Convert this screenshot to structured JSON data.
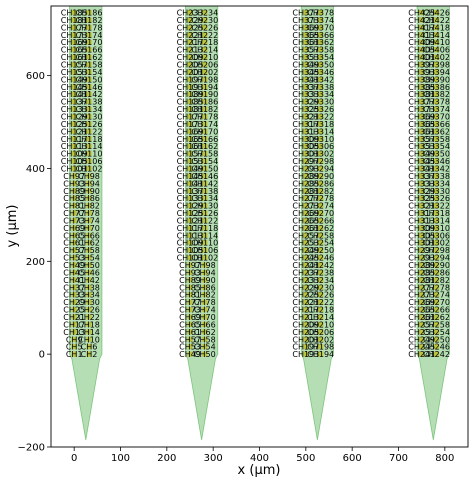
{
  "chart_data": {
    "type": "scatter",
    "title": "",
    "xlabel": "x (μm)",
    "ylabel": "y (μm)",
    "xlim": [
      -50,
      850
    ],
    "ylim": [
      -200,
      750
    ],
    "x_ticks": [
      0,
      100,
      200,
      300,
      400,
      500,
      600,
      700,
      800
    ],
    "y_ticks": [
      -200,
      0,
      200,
      400,
      600
    ],
    "grid": false,
    "legend": "none",
    "colors": {
      "probe_fill": "#2ca02c",
      "site_marker": "#bcbd22",
      "text": "#000000",
      "axes": "#000000"
    },
    "shanks": [
      {
        "outline_x": [
          -10,
          60,
          60,
          55,
          25,
          -5,
          -10
        ],
        "outline_y": [
          750,
          750,
          0,
          -10,
          -185,
          -10,
          0
        ],
        "site_x": [
          0,
          32
        ],
        "site_y": [
          0,
          16,
          32,
          48,
          64,
          80,
          96,
          112,
          128,
          144,
          160,
          176,
          192,
          208,
          224,
          240,
          256,
          272,
          288,
          304,
          320,
          336,
          352,
          368,
          384,
          400,
          416,
          432,
          448,
          464,
          480,
          496,
          512,
          528,
          544,
          560,
          576,
          592,
          608,
          624,
          640,
          656,
          672,
          688,
          704,
          720,
          736
        ],
        "labels_left": [
          "CH1",
          "CH5",
          "CH9",
          "CH13",
          "CH17",
          "CH21",
          "CH25",
          "CH29",
          "CH33",
          "CH37",
          "CH41",
          "CH45",
          "CH49",
          "CH53",
          "CH57",
          "CH61",
          "CH65",
          "CH69",
          "CH73",
          "CH77",
          "CH81",
          "CH85",
          "CH89",
          "CH93",
          "CH97",
          "CH101",
          "CH105",
          "CH109",
          "CH113",
          "CH117",
          "CH121",
          "CH125",
          "CH129",
          "CH133",
          "CH137",
          "CH141",
          "CH145",
          "CH149",
          "CH153",
          "CH157",
          "CH161",
          "CH165",
          "CH169",
          "CH173",
          "CH177",
          "CH181",
          "CH185"
        ],
        "labels_right": [
          "CH2",
          "CH6",
          "CH10",
          "CH14",
          "CH18",
          "CH22",
          "CH26",
          "CH30",
          "CH34",
          "CH38",
          "CH42",
          "CH46",
          "CH50",
          "CH54",
          "CH58",
          "CH62",
          "CH66",
          "CH70",
          "CH74",
          "CH78",
          "CH82",
          "CH86",
          "CH90",
          "CH94",
          "CH98",
          "CH102",
          "CH106",
          "CH110",
          "CH114",
          "CH118",
          "CH122",
          "CH126",
          "CH130",
          "CH134",
          "CH138",
          "CH142",
          "CH146",
          "CH150",
          "CH154",
          "CH158",
          "CH162",
          "CH166",
          "CH170",
          "CH174",
          "CH178",
          "CH182",
          "CH186"
        ]
      },
      {
        "outline_x": [
          240,
          310,
          310,
          305,
          275,
          245,
          240
        ],
        "outline_y": [
          750,
          750,
          0,
          -10,
          -185,
          -10,
          0
        ],
        "site_x": [
          250,
          282
        ],
        "site_y": [
          0,
          16,
          32,
          48,
          64,
          80,
          96,
          112,
          128,
          144,
          160,
          176,
          192,
          208,
          224,
          240,
          256,
          272,
          288,
          304,
          320,
          336,
          352,
          368,
          384,
          400,
          416,
          432,
          448,
          464,
          480,
          496,
          512,
          528,
          544,
          560,
          576,
          592,
          608,
          624,
          640,
          656,
          672,
          688,
          704,
          720,
          736
        ],
        "labels_left": [
          "CH49",
          "CH53",
          "CH57",
          "CH61",
          "CH65",
          "CH69",
          "CH73",
          "CH77",
          "CH81",
          "CH85",
          "CH89",
          "CH93",
          "CH97",
          "CH101",
          "CH105",
          "CH109",
          "CH113",
          "CH117",
          "CH121",
          "CH125",
          "CH129",
          "CH133",
          "CH137",
          "CH141",
          "CH145",
          "CH149",
          "CH153",
          "CH157",
          "CH161",
          "CH165",
          "CH169",
          "CH173",
          "CH177",
          "CH181",
          "CH185",
          "CH189",
          "CH193",
          "CH197",
          "CH201",
          "CH205",
          "CH209",
          "CH213",
          "CH217",
          "CH221",
          "CH225",
          "CH229",
          "CH233"
        ],
        "labels_right": [
          "CH50",
          "CH54",
          "CH58",
          "CH62",
          "CH66",
          "CH70",
          "CH74",
          "CH78",
          "CH82",
          "CH86",
          "CH90",
          "CH94",
          "CH98",
          "CH102",
          "CH106",
          "CH110",
          "CH114",
          "CH118",
          "CH122",
          "CH126",
          "CH130",
          "CH134",
          "CH138",
          "CH142",
          "CH146",
          "CH150",
          "CH154",
          "CH158",
          "CH162",
          "CH166",
          "CH170",
          "CH174",
          "CH178",
          "CH182",
          "CH186",
          "CH190",
          "CH194",
          "CH198",
          "CH202",
          "CH206",
          "CH210",
          "CH214",
          "CH218",
          "CH222",
          "CH226",
          "CH230",
          "CH234"
        ]
      },
      {
        "outline_x": [
          490,
          560,
          560,
          555,
          525,
          495,
          490
        ],
        "outline_y": [
          750,
          750,
          0,
          -10,
          -185,
          -10,
          0
        ],
        "site_x": [
          500,
          532
        ],
        "site_y": [
          0,
          16,
          32,
          48,
          64,
          80,
          96,
          112,
          128,
          144,
          160,
          176,
          192,
          208,
          224,
          240,
          256,
          272,
          288,
          304,
          320,
          336,
          352,
          368,
          384,
          400,
          416,
          432,
          448,
          464,
          480,
          496,
          512,
          528,
          544,
          560,
          576,
          592,
          608,
          624,
          640,
          656,
          672,
          688,
          704,
          720,
          736
        ],
        "labels_left": [
          "CH193",
          "CH197",
          "CH201",
          "CH205",
          "CH209",
          "CH213",
          "CH217",
          "CH221",
          "CH225",
          "CH229",
          "CH233",
          "CH237",
          "CH241",
          "CH245",
          "CH249",
          "CH253",
          "CH257",
          "CH261",
          "CH265",
          "CH269",
          "CH273",
          "CH277",
          "CH281",
          "CH285",
          "CH289",
          "CH293",
          "CH297",
          "CH301",
          "CH305",
          "CH309",
          "CH313",
          "CH317",
          "CH321",
          "CH325",
          "CH329",
          "CH333",
          "CH337",
          "CH341",
          "CH345",
          "CH349",
          "CH353",
          "CH357",
          "CH361",
          "CH365",
          "CH369",
          "CH373",
          "CH377"
        ],
        "labels_right": [
          "CH194",
          "CH198",
          "CH202",
          "CH206",
          "CH210",
          "CH214",
          "CH218",
          "CH222",
          "CH226",
          "CH230",
          "CH234",
          "CH238",
          "CH242",
          "CH246",
          "CH250",
          "CH254",
          "CH258",
          "CH262",
          "CH266",
          "CH270",
          "CH274",
          "CH278",
          "CH282",
          "CH286",
          "CH290",
          "CH294",
          "CH298",
          "CH302",
          "CH306",
          "CH310",
          "CH314",
          "CH318",
          "CH322",
          "CH326",
          "CH330",
          "CH334",
          "CH338",
          "CH342",
          "CH346",
          "CH350",
          "CH354",
          "CH358",
          "CH362",
          "CH366",
          "CH370",
          "CH374",
          "CH378"
        ]
      },
      {
        "outline_x": [
          740,
          810,
          810,
          805,
          775,
          745,
          740
        ],
        "outline_y": [
          750,
          750,
          0,
          -10,
          -185,
          -10,
          0
        ],
        "site_x": [
          750,
          782
        ],
        "site_y": [
          0,
          16,
          32,
          48,
          64,
          80,
          96,
          112,
          128,
          144,
          160,
          176,
          192,
          208,
          224,
          240,
          256,
          272,
          288,
          304,
          320,
          336,
          352,
          368,
          384,
          400,
          416,
          432,
          448,
          464,
          480,
          496,
          512,
          528,
          544,
          560,
          576,
          592,
          608,
          624,
          640,
          656,
          672,
          688,
          704,
          720,
          736
        ],
        "labels_left": [
          "CH241",
          "CH245",
          "CH249",
          "CH253",
          "CH257",
          "CH261",
          "CH265",
          "CH269",
          "CH273",
          "CH277",
          "CH281",
          "CH285",
          "CH289",
          "CH293",
          "CH297",
          "CH301",
          "CH305",
          "CH309",
          "CH313",
          "CH317",
          "CH321",
          "CH325",
          "CH329",
          "CH333",
          "CH337",
          "CH341",
          "CH345",
          "CH349",
          "CH353",
          "CH357",
          "CH361",
          "CH365",
          "CH369",
          "CH373",
          "CH377",
          "CH381",
          "CH385",
          "CH389",
          "CH393",
          "CH397",
          "CH401",
          "CH405",
          "CH409",
          "CH413",
          "CH417",
          "CH421",
          "CH425"
        ],
        "labels_right": [
          "CH242",
          "CH246",
          "CH250",
          "CH254",
          "CH258",
          "CH262",
          "CH266",
          "CH270",
          "CH274",
          "CH278",
          "CH282",
          "CH286",
          "CH290",
          "CH294",
          "CH298",
          "CH302",
          "CH306",
          "CH310",
          "CH314",
          "CH318",
          "CH322",
          "CH326",
          "CH330",
          "CH334",
          "CH338",
          "CH342",
          "CH346",
          "CH350",
          "CH354",
          "CH358",
          "CH362",
          "CH366",
          "CH370",
          "CH374",
          "CH378",
          "CH382",
          "CH386",
          "CH390",
          "CH394",
          "CH398",
          "CH402",
          "CH406",
          "CH410",
          "CH414",
          "CH418",
          "CH422",
          "CH426"
        ]
      }
    ]
  }
}
